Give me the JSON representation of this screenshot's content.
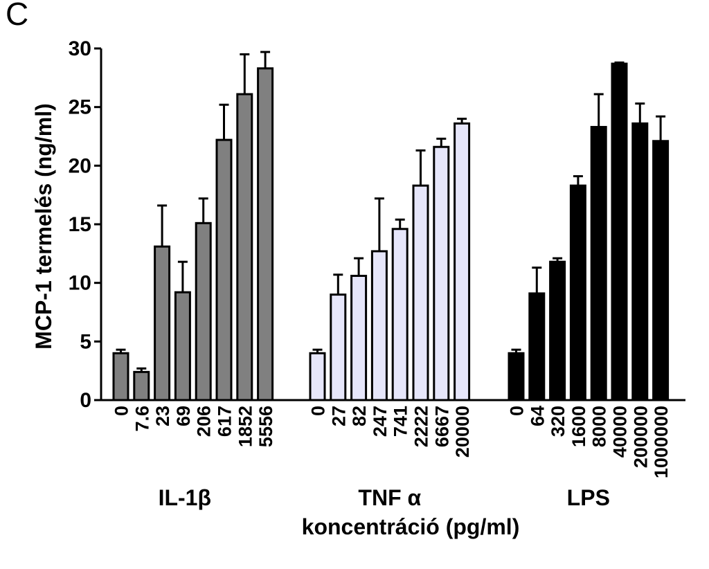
{
  "panel_label": "C",
  "chart_data": {
    "type": "bar",
    "ylabel": "MCP-1 termelés (ng/ml)",
    "xlabel": "koncentráció (pg/ml)",
    "ylim": [
      0,
      30
    ],
    "yticks": [
      0,
      5,
      10,
      15,
      20,
      25,
      30
    ],
    "grid": false,
    "legend": "none",
    "groups": [
      {
        "name": "IL-1β",
        "color": "#808080",
        "categories": [
          "0",
          "7.6",
          "23",
          "69",
          "206",
          "617",
          "1852",
          "5556"
        ],
        "values": [
          4.0,
          2.4,
          13.1,
          9.2,
          15.1,
          22.2,
          26.1,
          28.3
        ],
        "errors": [
          0.3,
          0.3,
          3.5,
          2.6,
          2.1,
          3.0,
          3.4,
          1.4
        ]
      },
      {
        "name": "TNF α",
        "color": "#e6e6fa",
        "categories": [
          "0",
          "27",
          "82",
          "247",
          "741",
          "2222",
          "6667",
          "20000"
        ],
        "values": [
          4.0,
          9.0,
          10.6,
          12.7,
          14.6,
          18.3,
          21.6,
          23.6
        ],
        "errors": [
          0.3,
          1.7,
          1.5,
          4.5,
          0.8,
          3.0,
          0.7,
          0.4
        ]
      },
      {
        "name": "LPS",
        "color": "#000000",
        "categories": [
          "0",
          "64",
          "320",
          "1600",
          "8000",
          "40000",
          "200000",
          "1000000"
        ],
        "values": [
          4.0,
          9.1,
          11.8,
          18.3,
          23.3,
          28.7,
          23.6,
          22.1
        ],
        "errors": [
          0.3,
          2.2,
          0.3,
          0.8,
          2.8,
          0.1,
          1.7,
          2.1
        ]
      }
    ]
  }
}
